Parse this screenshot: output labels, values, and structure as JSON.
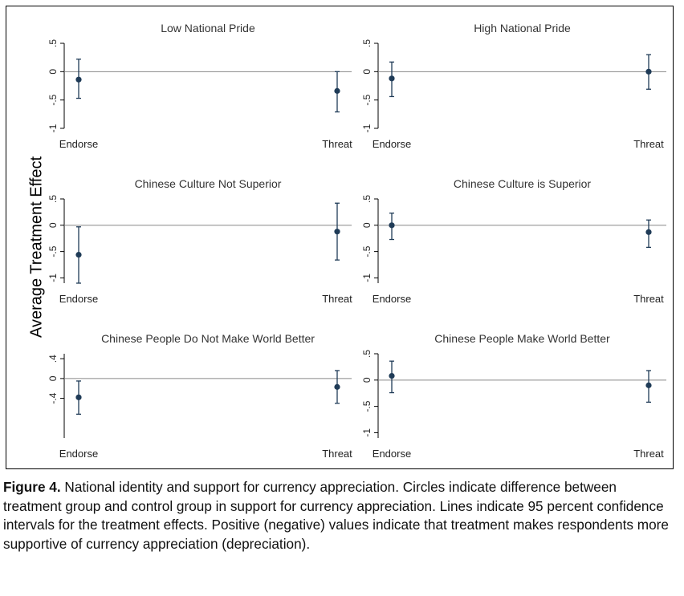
{
  "ylabel": "Average Treatment Effect",
  "caption": {
    "label": "Figure 4.",
    "text": " National identity and support for currency appreciation. Circles indicate difference between treatment group and control group in support for currency appreciation. Lines indicate 95 percent confidence intervals for the treatment effects. Positive (negative) values indicate that treatment makes respondents more supportive of currency appreciation (depreciation)."
  },
  "colors": {
    "marker": "#1f3b57",
    "line": "#1f3b57",
    "zero_line": "#888888",
    "axis": "#000000"
  },
  "chart_data": [
    {
      "type": "scatter",
      "title": "Low National Pride",
      "categories": [
        "Endorse",
        "Threat"
      ],
      "ylim": [
        -1,
        0.5
      ],
      "yticks": [
        0.5,
        0,
        -0.5,
        -1
      ],
      "ytick_labels": [
        ".5",
        "0",
        "-.5",
        "-1"
      ],
      "points": [
        {
          "x": "Endorse",
          "y": -0.14,
          "lo": -0.47,
          "hi": 0.22
        },
        {
          "x": "Threat",
          "y": -0.34,
          "lo": -0.71,
          "hi": 0.0
        }
      ]
    },
    {
      "type": "scatter",
      "title": "High National Pride",
      "categories": [
        "Endorse",
        "Threat"
      ],
      "ylim": [
        -1,
        0.5
      ],
      "yticks": [
        0.5,
        0,
        -0.5,
        -1
      ],
      "ytick_labels": [
        ".5",
        "0",
        "-.5",
        "-1"
      ],
      "points": [
        {
          "x": "Endorse",
          "y": -0.12,
          "lo": -0.44,
          "hi": 0.17
        },
        {
          "x": "Threat",
          "y": 0.0,
          "lo": -0.31,
          "hi": 0.3
        }
      ]
    },
    {
      "type": "scatter",
      "title": "Chinese Culture Not Superior",
      "categories": [
        "Endorse",
        "Threat"
      ],
      "ylim": [
        -1.1,
        0.5
      ],
      "yticks": [
        0.5,
        0,
        -0.5,
        -1
      ],
      "ytick_labels": [
        ".5",
        "0",
        "-.5",
        "-1"
      ],
      "points": [
        {
          "x": "Endorse",
          "y": -0.56,
          "lo": -1.1,
          "hi": -0.03
        },
        {
          "x": "Threat",
          "y": -0.12,
          "lo": -0.66,
          "hi": 0.42
        }
      ]
    },
    {
      "type": "scatter",
      "title": "Chinese Culture is Superior",
      "categories": [
        "Endorse",
        "Threat"
      ],
      "ylim": [
        -1.1,
        0.5
      ],
      "yticks": [
        0.5,
        0,
        -0.5,
        -1
      ],
      "ytick_labels": [
        ".5",
        "0",
        "-.5",
        "-1"
      ],
      "points": [
        {
          "x": "Endorse",
          "y": 0.0,
          "lo": -0.27,
          "hi": 0.23
        },
        {
          "x": "Threat",
          "y": -0.13,
          "lo": -0.42,
          "hi": 0.1
        }
      ]
    },
    {
      "type": "scatter",
      "title": "Chinese People Do Not Make World Better",
      "categories": [
        "Endorse",
        "Threat"
      ],
      "ylim": [
        -1.2,
        0.5
      ],
      "yticks": [
        0.4,
        0,
        -0.4
      ],
      "ytick_labels": [
        ".4",
        "0",
        "-.4"
      ],
      "points": [
        {
          "x": "Endorse",
          "y": -0.38,
          "lo": -0.72,
          "hi": -0.05
        },
        {
          "x": "Threat",
          "y": -0.17,
          "lo": -0.5,
          "hi": 0.16
        }
      ]
    },
    {
      "type": "scatter",
      "title": "Chinese People Make World Better",
      "categories": [
        "Endorse",
        "Threat"
      ],
      "ylim": [
        -1.1,
        0.5
      ],
      "yticks": [
        0.5,
        0,
        -0.5,
        -1
      ],
      "ytick_labels": [
        ".5",
        "0",
        "-.5",
        "-1"
      ],
      "points": [
        {
          "x": "Endorse",
          "y": 0.08,
          "lo": -0.24,
          "hi": 0.36
        },
        {
          "x": "Threat",
          "y": -0.1,
          "lo": -0.42,
          "hi": 0.18
        }
      ]
    }
  ]
}
